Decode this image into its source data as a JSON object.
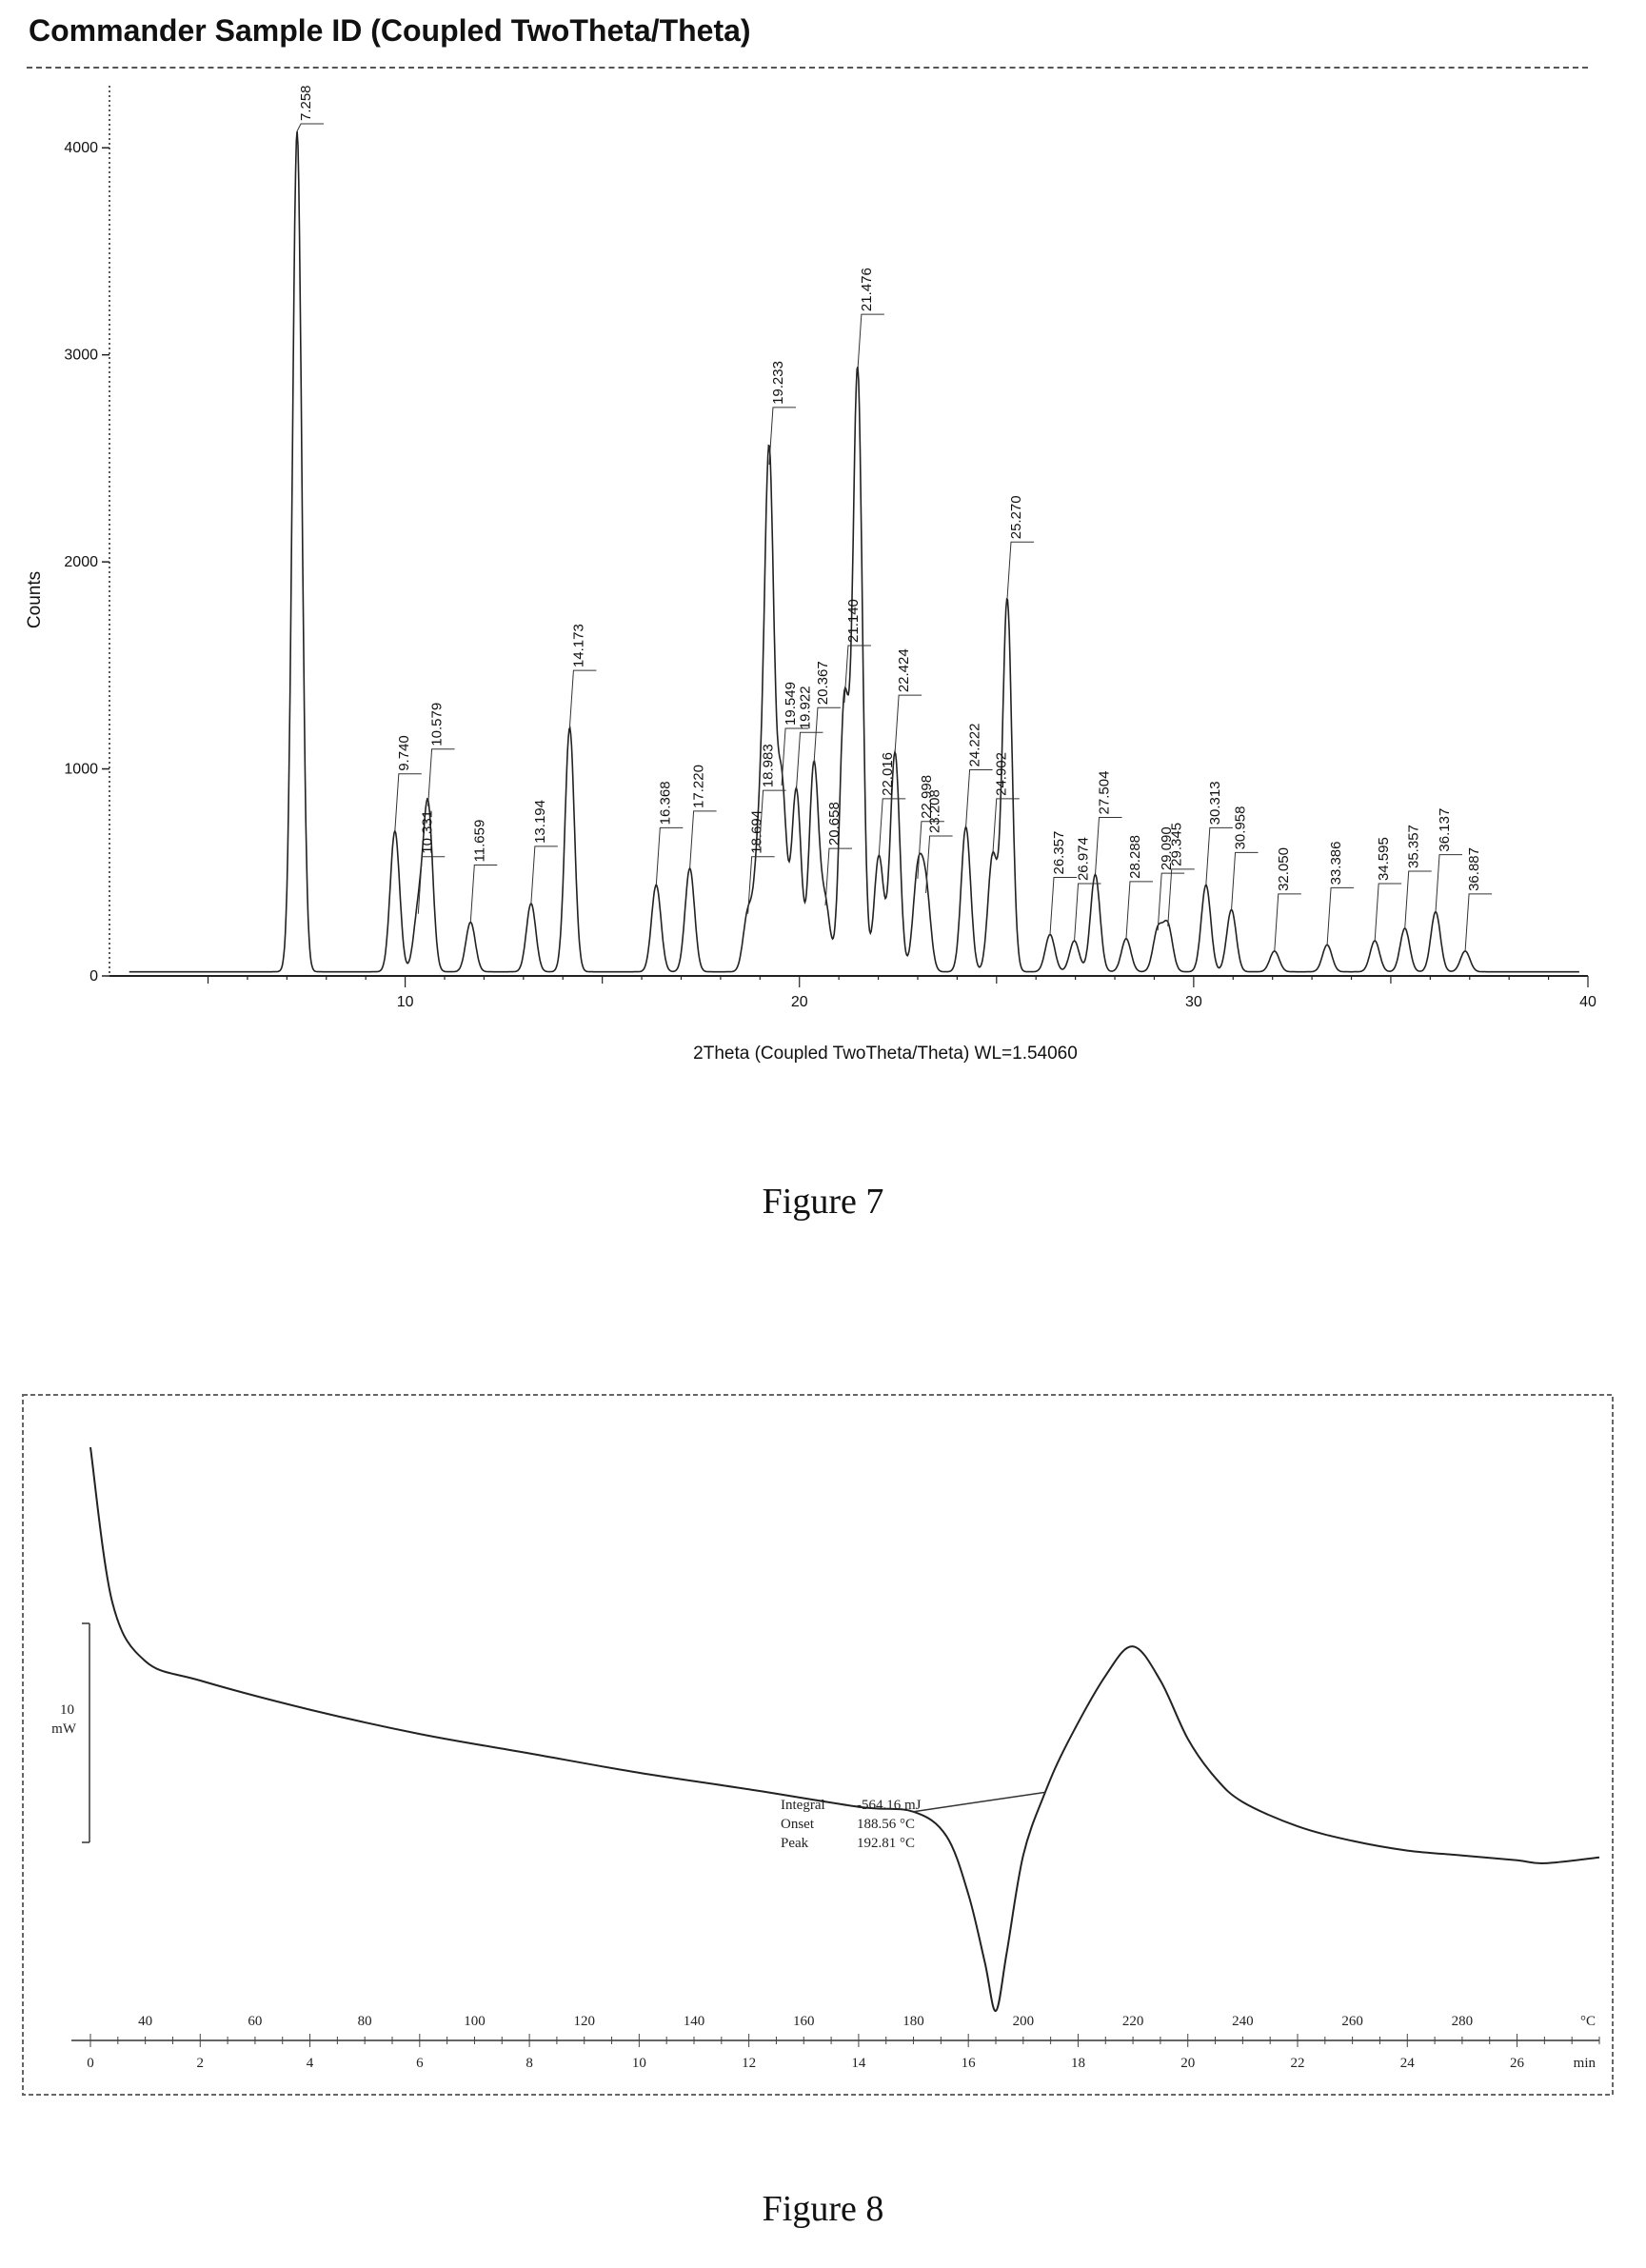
{
  "figure7": {
    "title": "Commander Sample ID (Coupled TwoTheta/Theta)",
    "caption": "Figure 7",
    "chart_data": {
      "type": "line",
      "title": "Commander Sample ID (Coupled TwoTheta/Theta)",
      "xlabel": "2Theta (Coupled TwoTheta/Theta) WL=1.54060",
      "ylabel": "Counts",
      "xlim": [
        2.5,
        40
      ],
      "ylim": [
        0,
        4300
      ],
      "x_ticks": [
        "10",
        "20",
        "30",
        "40"
      ],
      "y_ticks": [
        "0",
        "1000",
        "2000",
        "3000",
        "4000"
      ],
      "background": 20,
      "peaks": [
        {
          "label": "7.258",
          "x": 7.258,
          "y": 4060
        },
        {
          "label": "9.740",
          "x": 9.74,
          "y": 680
        },
        {
          "label": "10.331",
          "x": 10.331,
          "y": 280
        },
        {
          "label": "10.579",
          "x": 10.579,
          "y": 800
        },
        {
          "label": "11.659",
          "x": 11.659,
          "y": 240
        },
        {
          "label": "13.194",
          "x": 13.194,
          "y": 330
        },
        {
          "label": "14.173",
          "x": 14.173,
          "y": 1180
        },
        {
          "label": "16.368",
          "x": 16.368,
          "y": 420
        },
        {
          "label": "17.220",
          "x": 17.22,
          "y": 500
        },
        {
          "label": "18.694",
          "x": 18.694,
          "y": 280
        },
        {
          "label": "18.983",
          "x": 18.983,
          "y": 600
        },
        {
          "label": "19.233",
          "x": 19.233,
          "y": 2450
        },
        {
          "label": "19.549",
          "x": 19.549,
          "y": 900
        },
        {
          "label": "19.922",
          "x": 19.922,
          "y": 880
        },
        {
          "label": "20.367",
          "x": 20.367,
          "y": 1000
        },
        {
          "label": "20.658",
          "x": 20.658,
          "y": 320
        },
        {
          "label": "21.140",
          "x": 21.14,
          "y": 1300
        },
        {
          "label": "21.476",
          "x": 21.476,
          "y": 2900
        },
        {
          "label": "22.016",
          "x": 22.016,
          "y": 560
        },
        {
          "label": "22.424",
          "x": 22.424,
          "y": 1060
        },
        {
          "label": "22.998",
          "x": 22.998,
          "y": 450
        },
        {
          "label": "23.208",
          "x": 23.208,
          "y": 380
        },
        {
          "label": "24.222",
          "x": 24.222,
          "y": 700
        },
        {
          "label": "24.902",
          "x": 24.902,
          "y": 560
        },
        {
          "label": "25.270",
          "x": 25.27,
          "y": 1800
        },
        {
          "label": "26.357",
          "x": 26.357,
          "y": 180
        },
        {
          "label": "26.974",
          "x": 26.974,
          "y": 150
        },
        {
          "label": "27.504",
          "x": 27.504,
          "y": 470
        },
        {
          "label": "28.288",
          "x": 28.288,
          "y": 160
        },
        {
          "label": "29.090",
          "x": 29.09,
          "y": 200
        },
        {
          "label": "29.345",
          "x": 29.345,
          "y": 220
        },
        {
          "label": "30.313",
          "x": 30.313,
          "y": 420
        },
        {
          "label": "30.958",
          "x": 30.958,
          "y": 300
        },
        {
          "label": "32.050",
          "x": 32.05,
          "y": 100
        },
        {
          "label": "33.386",
          "x": 33.386,
          "y": 130
        },
        {
          "label": "34.595",
          "x": 34.595,
          "y": 150
        },
        {
          "label": "35.357",
          "x": 35.357,
          "y": 210
        },
        {
          "label": "36.137",
          "x": 36.137,
          "y": 290
        },
        {
          "label": "36.887",
          "x": 36.887,
          "y": 100
        }
      ]
    }
  },
  "figure8": {
    "caption": "Figure 8",
    "chart_data": {
      "type": "line",
      "xlabel_top_unit": "°C",
      "xlabel_bottom_unit": "min",
      "temperature_ticks": [
        "40",
        "60",
        "80",
        "100",
        "120",
        "140",
        "160",
        "180",
        "200",
        "220",
        "240",
        "260",
        "280"
      ],
      "time_ticks": [
        "0",
        "2",
        "4",
        "6",
        "8",
        "10",
        "12",
        "14",
        "16",
        "18",
        "20",
        "22",
        "24",
        "26"
      ],
      "time_range_min": [
        0,
        27.5
      ],
      "scale_bar_label_value": "10",
      "scale_bar_label_unit": "mW",
      "curve": {
        "x_min": [
          0,
          0.4,
          1,
          2,
          4,
          6,
          8,
          10,
          12,
          14,
          15.0,
          15.6,
          16.0,
          16.3,
          16.5,
          16.7,
          17.0,
          17.4,
          17.8,
          18.5,
          19.0,
          19.5,
          20.0,
          20.5,
          21.0,
          22.0,
          23.0,
          24.0,
          25.0,
          26.0,
          26.5,
          27.5
        ],
        "y_signal": [
          38,
          22,
          16,
          14,
          11,
          8.5,
          6.5,
          4.5,
          2.8,
          1.0,
          0.5,
          -2.0,
          -8.0,
          -15.0,
          -20.0,
          -14.0,
          -4.0,
          2.5,
          7.5,
          14.5,
          17.5,
          14.0,
          8.0,
          4.0,
          1.5,
          -1.0,
          -2.5,
          -3.5,
          -4.0,
          -4.5,
          -4.8,
          -4.2
        ]
      },
      "annotation": {
        "integral_label": "Integral",
        "integral_value": "-564.16 mJ",
        "onset_label": "Onset",
        "onset_value": "188.56 °C",
        "peak_label": "Peak",
        "peak_value": "192.81 °C"
      }
    }
  }
}
